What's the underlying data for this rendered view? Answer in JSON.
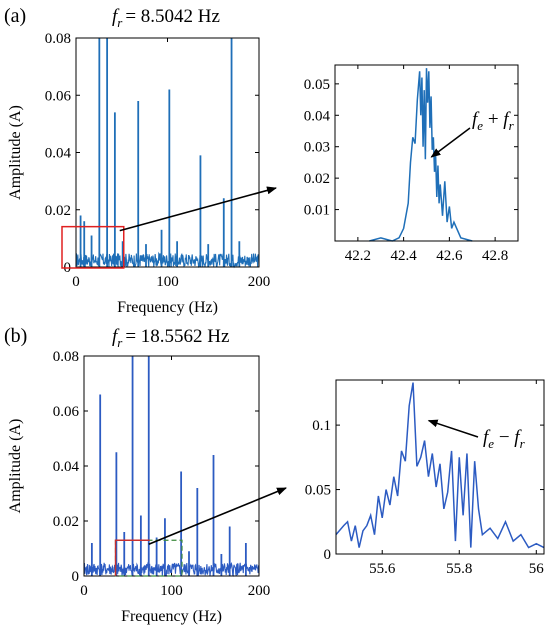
{
  "colors": {
    "series": "#1f6fb8",
    "series_b": "#2c5bc2",
    "highlight_a": "#e02020",
    "highlight_b_red": "#c83030",
    "highlight_b_green": "#3c8a3c",
    "arrow": "#000000"
  },
  "chart_data": [
    {
      "id": "a-main",
      "type": "line",
      "panel_label": "(a)",
      "title_symbol": "f",
      "title_sub": "r",
      "title_value": "= 8.5042 Hz",
      "xlabel": "Frequency (Hz)",
      "ylabel": "Amplitude (A)",
      "xlim": [
        0,
        200
      ],
      "ylim": [
        0,
        0.08
      ],
      "xticks": [
        0,
        100,
        200
      ],
      "yticks": [
        0,
        0.02,
        0.04,
        0.06,
        0.08
      ],
      "xtick_labels": [
        "0",
        "100",
        "200"
      ],
      "ytick_labels": [
        "0",
        "0.02",
        "0.04",
        "0.06",
        "0.08"
      ],
      "peaks": [
        {
          "x": 5,
          "y": 0.018
        },
        {
          "x": 9,
          "y": 0.016
        },
        {
          "x": 17,
          "y": 0.011
        },
        {
          "x": 25.5,
          "y": 0.08
        },
        {
          "x": 34,
          "y": 0.08
        },
        {
          "x": 42.5,
          "y": 0.054
        },
        {
          "x": 51,
          "y": 0.009
        },
        {
          "x": 68,
          "y": 0.058
        },
        {
          "x": 76.5,
          "y": 0.008
        },
        {
          "x": 93.5,
          "y": 0.013
        },
        {
          "x": 102,
          "y": 0.062
        },
        {
          "x": 110.5,
          "y": 0.009
        },
        {
          "x": 136,
          "y": 0.039
        },
        {
          "x": 144.5,
          "y": 0.008
        },
        {
          "x": 161.5,
          "y": 0.024
        },
        {
          "x": 170,
          "y": 0.08
        },
        {
          "x": 178.5,
          "y": 0.009
        }
      ],
      "noise_level": 0.004,
      "zoom_box": {
        "x": [
          0,
          50
        ],
        "y": [
          0,
          0.012
        ]
      }
    },
    {
      "id": "a-zoom",
      "type": "line",
      "xlim": [
        42.1,
        42.9
      ],
      "ylim": [
        0,
        0.056
      ],
      "xticks": [
        42.2,
        42.4,
        42.6,
        42.8
      ],
      "yticks": [
        0.01,
        0.02,
        0.03,
        0.04,
        0.05
      ],
      "xtick_labels": [
        "42.2",
        "42.4",
        "42.6",
        "42.8"
      ],
      "ytick_labels": [
        "0.01",
        "0.02",
        "0.03",
        "0.04",
        "0.05"
      ],
      "x": [
        42.25,
        42.3,
        42.35,
        42.38,
        42.4,
        42.42,
        42.43,
        42.44,
        42.45,
        42.46,
        42.47,
        42.475,
        42.48,
        42.485,
        42.49,
        42.495,
        42.5,
        42.505,
        42.51,
        42.515,
        42.52,
        42.525,
        42.53,
        42.535,
        42.54,
        42.545,
        42.55,
        42.555,
        42.56,
        42.57,
        42.58,
        42.59,
        42.6,
        42.61,
        42.62,
        42.65,
        42.7
      ],
      "y": [
        0.0,
        0.001,
        0.0,
        0.001,
        0.004,
        0.012,
        0.025,
        0.033,
        0.031,
        0.045,
        0.054,
        0.04,
        0.052,
        0.03,
        0.048,
        0.026,
        0.055,
        0.044,
        0.054,
        0.036,
        0.046,
        0.029,
        0.033,
        0.022,
        0.027,
        0.014,
        0.024,
        0.012,
        0.018,
        0.008,
        0.019,
        0.006,
        0.011,
        0.004,
        0.006,
        0.001,
        0.0
      ],
      "annotation": {
        "main": "f",
        "sub1": "e",
        "op": " + ",
        "main2": "f",
        "sub2": "r",
        "target": {
          "x": 42.495,
          "y": 0.028
        }
      }
    },
    {
      "id": "b-main",
      "type": "line",
      "panel_label": "(b)",
      "title_symbol": "f",
      "title_sub": "r",
      "title_value": "= 18.5562 Hz",
      "xlabel": "Frequency (Hz)",
      "ylabel": "Amplitude (A)",
      "xlim": [
        0,
        200
      ],
      "ylim": [
        0,
        0.08
      ],
      "xticks": [
        0,
        100,
        200
      ],
      "yticks": [
        0,
        0.02,
        0.04,
        0.06,
        0.08
      ],
      "xtick_labels": [
        "0",
        "100",
        "200"
      ],
      "ytick_labels": [
        "0",
        "0.02",
        "0.04",
        "0.06",
        "0.08"
      ],
      "peaks": [
        {
          "x": 9,
          "y": 0.012
        },
        {
          "x": 18.5,
          "y": 0.066
        },
        {
          "x": 37,
          "y": 0.045
        },
        {
          "x": 46,
          "y": 0.016
        },
        {
          "x": 55.5,
          "y": 0.08
        },
        {
          "x": 65,
          "y": 0.022
        },
        {
          "x": 74,
          "y": 0.08
        },
        {
          "x": 83,
          "y": 0.014
        },
        {
          "x": 92.5,
          "y": 0.021
        },
        {
          "x": 111,
          "y": 0.038
        },
        {
          "x": 120,
          "y": 0.009
        },
        {
          "x": 129.5,
          "y": 0.032
        },
        {
          "x": 148,
          "y": 0.044
        },
        {
          "x": 157,
          "y": 0.008
        },
        {
          "x": 166.5,
          "y": 0.018
        },
        {
          "x": 185,
          "y": 0.012
        }
      ],
      "noise_level": 0.004,
      "zoom_box_red": {
        "x": [
          36,
          75
        ],
        "y": [
          0,
          0.013
        ]
      },
      "zoom_box_green": {
        "x": [
          36,
          112
        ],
        "y": [
          0,
          0.013
        ]
      }
    },
    {
      "id": "b-zoom",
      "type": "line",
      "xlim": [
        55.48,
        56.02
      ],
      "ylim": [
        0,
        0.135
      ],
      "xticks": [
        55.6,
        55.8,
        56.0
      ],
      "yticks": [
        0,
        0.05,
        0.1
      ],
      "xtick_labels": [
        "55.6",
        "55.8",
        "56"
      ],
      "ytick_labels": [
        "0",
        "0.05",
        "0.1"
      ],
      "x": [
        55.48,
        55.5,
        55.51,
        55.52,
        55.53,
        55.54,
        55.55,
        55.56,
        55.57,
        55.58,
        55.59,
        55.6,
        55.61,
        55.62,
        55.63,
        55.64,
        55.65,
        55.66,
        55.67,
        55.68,
        55.69,
        55.7,
        55.71,
        55.72,
        55.73,
        55.74,
        55.75,
        55.76,
        55.77,
        55.78,
        55.79,
        55.8,
        55.81,
        55.82,
        55.83,
        55.84,
        55.85,
        55.86,
        55.88,
        55.9,
        55.92,
        55.94,
        55.96,
        55.98,
        56.0,
        56.02
      ],
      "y": [
        0.015,
        0.022,
        0.025,
        0.01,
        0.022,
        0.005,
        0.018,
        0.022,
        0.03,
        0.015,
        0.045,
        0.028,
        0.05,
        0.038,
        0.06,
        0.045,
        0.08,
        0.072,
        0.115,
        0.133,
        0.068,
        0.075,
        0.088,
        0.06,
        0.078,
        0.052,
        0.07,
        0.035,
        0.048,
        0.08,
        0.01,
        0.075,
        0.03,
        0.078,
        0.005,
        0.072,
        0.035,
        0.015,
        0.02,
        0.012,
        0.025,
        0.01,
        0.015,
        0.005,
        0.008,
        0.005
      ],
      "annotation": {
        "main": "f",
        "sub1": "e",
        "op": " − ",
        "main2": "f",
        "sub2": "r",
        "target": {
          "x": 55.705,
          "y": 0.102
        }
      }
    }
  ]
}
